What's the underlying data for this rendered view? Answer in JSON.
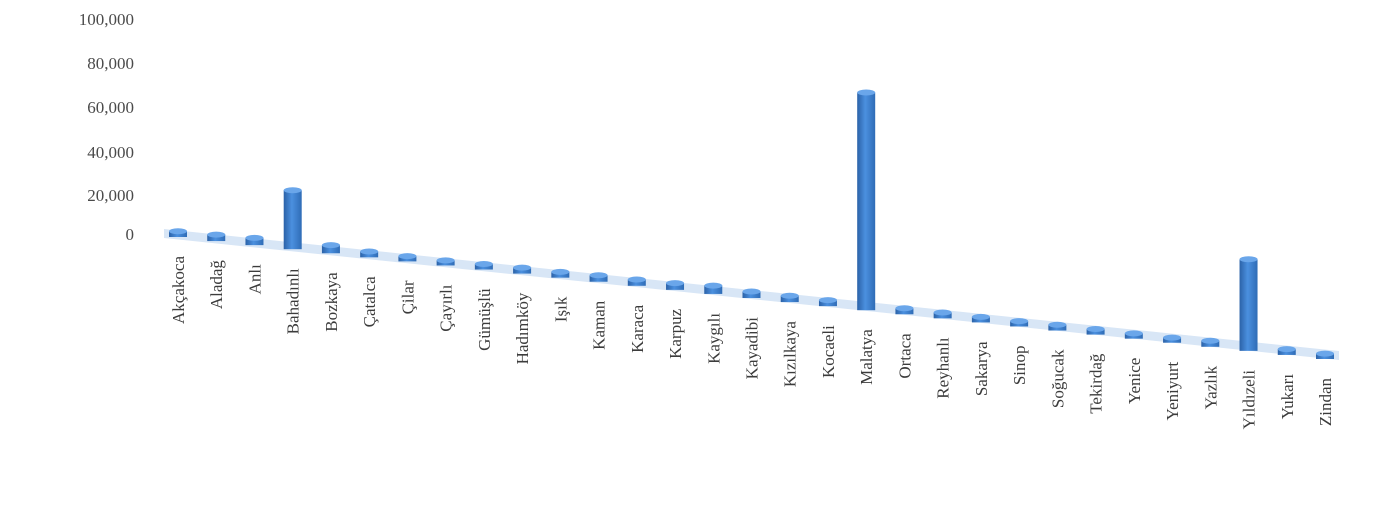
{
  "chart_data": {
    "type": "bar",
    "title": "",
    "xlabel": "",
    "ylabel": "",
    "y_ticks": [
      "0",
      "20,000",
      "40,000",
      "60,000",
      "80,000",
      "100,000"
    ],
    "ylim": [
      0,
      100000
    ],
    "grid": false,
    "legend": "none",
    "bar_color": "#3f85d6",
    "categories": [
      "Akçakoca",
      "Aladağ",
      "Anlı",
      "Bahadınlı",
      "Bozkaya",
      "Çatalca",
      "Çilar",
      "Çayırlı",
      "Gümüşlü",
      "Hadımköy",
      "Işık",
      "Kaman",
      "Karaca",
      "Karpuz",
      "Kaygılı",
      "Kayadibi",
      "Kızılkaya",
      "Kocaeli",
      "Malatya",
      "Ortaca",
      "Reyhanlı",
      "Sakarya",
      "Sinop",
      "Soğucak",
      "Tekirdağ",
      "Yenice",
      "Yeniyurt",
      "Yazlık",
      "Yıldızeli",
      "Yukarı",
      "Zindan"
    ],
    "values": [
      1200,
      1500,
      1800,
      24000,
      2200,
      1200,
      1000,
      900,
      1100,
      1300,
      1200,
      1500,
      1400,
      1600,
      2300,
      1500,
      1400,
      1300,
      92000,
      1300,
      1200,
      1100,
      1000,
      1200,
      1100,
      1000,
      900,
      1300,
      38000,
      1200,
      1000
    ]
  }
}
